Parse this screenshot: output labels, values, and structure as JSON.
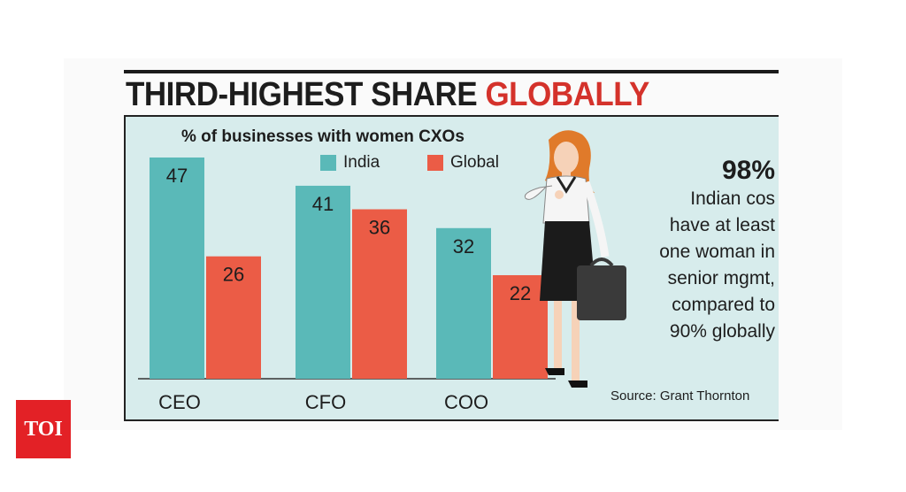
{
  "header": {
    "title_dark": "THIRD-HIGHEST SHARE",
    "title_red": "GLOBALLY"
  },
  "colors": {
    "india": "#5ab9b8",
    "global": "#eb5c46",
    "title_red": "#d4322b",
    "panel_bg": "#d7ecec",
    "logo_bg": "#e32126"
  },
  "chart_data": {
    "type": "bar",
    "title": "% of businesses with women CXOs",
    "categories": [
      "CEO",
      "CFO",
      "COO"
    ],
    "series": [
      {
        "name": "India",
        "values": [
          47,
          41,
          32
        ]
      },
      {
        "name": "Global",
        "values": [
          26,
          36,
          22
        ]
      }
    ],
    "ylim": [
      0,
      55
    ],
    "grid": false,
    "legend": "top"
  },
  "callout": {
    "figure": "98%",
    "lines": [
      "Indian cos",
      "have at least",
      "one woman in",
      "senior mgmt,",
      "compared to",
      "90% globally"
    ]
  },
  "source": "Source: Grant Thornton",
  "logo": {
    "text": "TOI"
  }
}
